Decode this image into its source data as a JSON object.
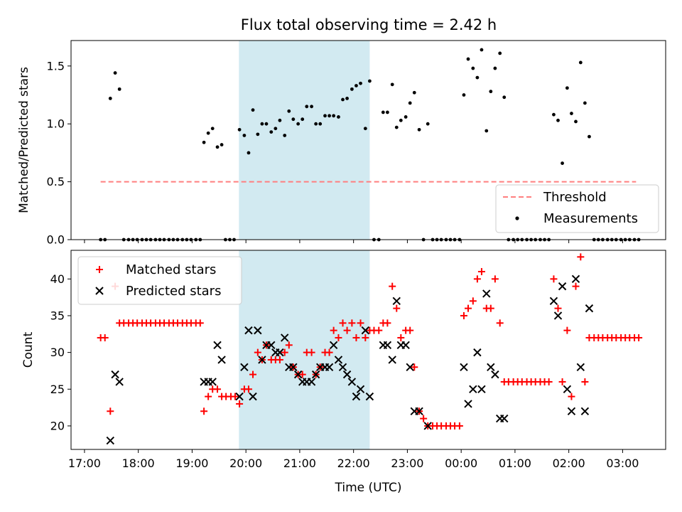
{
  "chart_data": {
    "type": "scatter",
    "title": "Flux total observing time = 2.42 h",
    "xlabel": "Time (UTC)",
    "x_ticks": [
      "17:00",
      "18:00",
      "19:00",
      "20:00",
      "21:00",
      "22:00",
      "23:00",
      "00:00",
      "01:00",
      "02:00",
      "03:00"
    ],
    "x_tick_hours": [
      17,
      18,
      19,
      20,
      21,
      22,
      23,
      24,
      25,
      26,
      27
    ],
    "xlim_hours": [
      16.75,
      27.8
    ],
    "highlight_span_hours": [
      19.87,
      22.3
    ],
    "colors": {
      "measurements": "#000000",
      "threshold": "#ff7f7f",
      "matched": "#ff0000",
      "predicted": "#000000",
      "span": "#add8e6"
    },
    "top": {
      "ylabel": "Matched/Predicted stars",
      "ylim": [
        0,
        1.72
      ],
      "y_ticks": [
        0.0,
        0.5,
        1.0,
        1.5
      ],
      "legend": [
        "Threshold",
        "Measurements"
      ],
      "legend_location": "lower-right",
      "threshold": {
        "name": "Threshold",
        "value": 0.5,
        "x_range_hours": [
          17.3,
          27.25
        ]
      },
      "measurements": [
        [
          17.3,
          0
        ],
        [
          17.38,
          0
        ],
        [
          17.48,
          1.22
        ],
        [
          17.57,
          1.44
        ],
        [
          17.65,
          1.3
        ],
        [
          17.73,
          0
        ],
        [
          17.82,
          0
        ],
        [
          17.9,
          0
        ],
        [
          17.98,
          0
        ],
        [
          18.07,
          0
        ],
        [
          18.15,
          0
        ],
        [
          18.23,
          0
        ],
        [
          18.32,
          0
        ],
        [
          18.4,
          0
        ],
        [
          18.48,
          0
        ],
        [
          18.57,
          0
        ],
        [
          18.65,
          0
        ],
        [
          18.73,
          0
        ],
        [
          18.82,
          0
        ],
        [
          18.9,
          0
        ],
        [
          18.98,
          0
        ],
        [
          19.07,
          0
        ],
        [
          19.15,
          0
        ],
        [
          19.22,
          0.84
        ],
        [
          19.3,
          0.92
        ],
        [
          19.38,
          0.96
        ],
        [
          19.47,
          0.8
        ],
        [
          19.55,
          0.82
        ],
        [
          19.62,
          0
        ],
        [
          19.7,
          0
        ],
        [
          19.78,
          0
        ],
        [
          19.88,
          0.95
        ],
        [
          19.97,
          0.9
        ],
        [
          20.05,
          0.75
        ],
        [
          20.13,
          1.12
        ],
        [
          20.22,
          0.91
        ],
        [
          20.3,
          1.0
        ],
        [
          20.38,
          1.0
        ],
        [
          20.47,
          0.93
        ],
        [
          20.55,
          0.96
        ],
        [
          20.63,
          1.03
        ],
        [
          20.72,
          0.9
        ],
        [
          20.8,
          1.11
        ],
        [
          20.88,
          1.04
        ],
        [
          20.97,
          1.0
        ],
        [
          21.05,
          1.04
        ],
        [
          21.13,
          1.15
        ],
        [
          21.22,
          1.15
        ],
        [
          21.3,
          1.0
        ],
        [
          21.38,
          1.0
        ],
        [
          21.47,
          1.07
        ],
        [
          21.55,
          1.07
        ],
        [
          21.63,
          1.07
        ],
        [
          21.72,
          1.06
        ],
        [
          21.8,
          1.21
        ],
        [
          21.88,
          1.22
        ],
        [
          21.97,
          1.3
        ],
        [
          22.05,
          1.33
        ],
        [
          22.13,
          1.35
        ],
        [
          22.22,
          0.96
        ],
        [
          22.3,
          1.37
        ],
        [
          22.38,
          0
        ],
        [
          22.47,
          0
        ],
        [
          22.55,
          1.1
        ],
        [
          22.63,
          1.1
        ],
        [
          22.72,
          1.34
        ],
        [
          22.8,
          0.97
        ],
        [
          22.88,
          1.03
        ],
        [
          22.97,
          1.06
        ],
        [
          23.05,
          1.18
        ],
        [
          23.13,
          1.27
        ],
        [
          23.22,
          0.95
        ],
        [
          23.3,
          0
        ],
        [
          23.38,
          1.0
        ],
        [
          23.47,
          0
        ],
        [
          23.55,
          0
        ],
        [
          23.63,
          0
        ],
        [
          23.72,
          0
        ],
        [
          23.8,
          0
        ],
        [
          23.88,
          0
        ],
        [
          23.97,
          0
        ],
        [
          24.05,
          1.25
        ],
        [
          24.13,
          1.56
        ],
        [
          24.22,
          1.48
        ],
        [
          24.3,
          1.4
        ],
        [
          24.38,
          1.64
        ],
        [
          24.47,
          0.94
        ],
        [
          24.55,
          1.28
        ],
        [
          24.63,
          1.48
        ],
        [
          24.72,
          1.61
        ],
        [
          24.8,
          1.23
        ],
        [
          24.88,
          0
        ],
        [
          24.97,
          0
        ],
        [
          25.05,
          0
        ],
        [
          25.13,
          0
        ],
        [
          25.22,
          0
        ],
        [
          25.3,
          0
        ],
        [
          25.38,
          0
        ],
        [
          25.47,
          0
        ],
        [
          25.55,
          0
        ],
        [
          25.63,
          0
        ],
        [
          25.72,
          1.08
        ],
        [
          25.8,
          1.03
        ],
        [
          25.88,
          0.66
        ],
        [
          25.97,
          1.31
        ],
        [
          26.05,
          1.09
        ],
        [
          26.13,
          1.02
        ],
        [
          26.22,
          1.53
        ],
        [
          26.3,
          1.18
        ],
        [
          26.38,
          0.89
        ],
        [
          26.47,
          0
        ],
        [
          26.55,
          0
        ],
        [
          26.63,
          0
        ],
        [
          26.72,
          0
        ],
        [
          26.8,
          0
        ],
        [
          26.88,
          0
        ],
        [
          26.97,
          0
        ],
        [
          27.05,
          0
        ],
        [
          27.13,
          0
        ],
        [
          27.22,
          0
        ],
        [
          27.3,
          0
        ]
      ]
    },
    "bottom": {
      "ylabel": "Count",
      "ylim": [
        16.8,
        43.9
      ],
      "y_ticks": [
        20,
        25,
        30,
        35,
        40
      ],
      "legend": [
        "Matched stars",
        "Predicted stars"
      ],
      "legend_location": "upper-left",
      "matched": [
        [
          17.3,
          32
        ],
        [
          17.38,
          32
        ],
        [
          17.48,
          22
        ],
        [
          17.57,
          39
        ],
        [
          17.65,
          34
        ],
        [
          17.73,
          34
        ],
        [
          17.82,
          34
        ],
        [
          17.9,
          34
        ],
        [
          17.98,
          34
        ],
        [
          18.07,
          34
        ],
        [
          18.15,
          34
        ],
        [
          18.23,
          34
        ],
        [
          18.32,
          34
        ],
        [
          18.4,
          34
        ],
        [
          18.48,
          34
        ],
        [
          18.57,
          34
        ],
        [
          18.65,
          34
        ],
        [
          18.73,
          34
        ],
        [
          18.82,
          34
        ],
        [
          18.9,
          34
        ],
        [
          18.98,
          34
        ],
        [
          19.07,
          34
        ],
        [
          19.15,
          34
        ],
        [
          19.22,
          22
        ],
        [
          19.3,
          24
        ],
        [
          19.38,
          25
        ],
        [
          19.47,
          25
        ],
        [
          19.55,
          24
        ],
        [
          19.63,
          24
        ],
        [
          19.72,
          24
        ],
        [
          19.8,
          24
        ],
        [
          19.88,
          23
        ],
        [
          19.97,
          25
        ],
        [
          20.05,
          25
        ],
        [
          20.13,
          27
        ],
        [
          20.22,
          30
        ],
        [
          20.3,
          29
        ],
        [
          20.38,
          31
        ],
        [
          20.47,
          29
        ],
        [
          20.55,
          29
        ],
        [
          20.63,
          29
        ],
        [
          20.72,
          30
        ],
        [
          20.8,
          31
        ],
        [
          20.88,
          28
        ],
        [
          20.97,
          27
        ],
        [
          21.05,
          27
        ],
        [
          21.13,
          30
        ],
        [
          21.22,
          30
        ],
        [
          21.3,
          27
        ],
        [
          21.38,
          28
        ],
        [
          21.47,
          30
        ],
        [
          21.55,
          30
        ],
        [
          21.63,
          33
        ],
        [
          21.72,
          32
        ],
        [
          21.8,
          34
        ],
        [
          21.88,
          33
        ],
        [
          21.97,
          34
        ],
        [
          22.05,
          32
        ],
        [
          22.13,
          34
        ],
        [
          22.22,
          32
        ],
        [
          22.3,
          33
        ],
        [
          22.38,
          33
        ],
        [
          22.47,
          33
        ],
        [
          22.55,
          34
        ],
        [
          22.63,
          34
        ],
        [
          22.72,
          39
        ],
        [
          22.8,
          36
        ],
        [
          22.88,
          32
        ],
        [
          22.97,
          33
        ],
        [
          23.05,
          33
        ],
        [
          23.13,
          28
        ],
        [
          23.22,
          22
        ],
        [
          23.3,
          21
        ],
        [
          23.38,
          20
        ],
        [
          23.47,
          20
        ],
        [
          23.55,
          20
        ],
        [
          23.63,
          20
        ],
        [
          23.72,
          20
        ],
        [
          23.8,
          20
        ],
        [
          23.88,
          20
        ],
        [
          23.97,
          20
        ],
        [
          24.05,
          35
        ],
        [
          24.13,
          36
        ],
        [
          24.22,
          37
        ],
        [
          24.3,
          40
        ],
        [
          24.38,
          41
        ],
        [
          24.47,
          36
        ],
        [
          24.55,
          36
        ],
        [
          24.63,
          40
        ],
        [
          24.72,
          34
        ],
        [
          24.8,
          26
        ],
        [
          24.88,
          26
        ],
        [
          24.97,
          26
        ],
        [
          25.05,
          26
        ],
        [
          25.13,
          26
        ],
        [
          25.22,
          26
        ],
        [
          25.3,
          26
        ],
        [
          25.38,
          26
        ],
        [
          25.47,
          26
        ],
        [
          25.55,
          26
        ],
        [
          25.63,
          26
        ],
        [
          25.72,
          40
        ],
        [
          25.8,
          36
        ],
        [
          25.88,
          26
        ],
        [
          25.97,
          33
        ],
        [
          26.05,
          24
        ],
        [
          26.13,
          39
        ],
        [
          26.22,
          43
        ],
        [
          26.3,
          26
        ],
        [
          26.38,
          32
        ],
        [
          26.47,
          32
        ],
        [
          26.55,
          32
        ],
        [
          26.63,
          32
        ],
        [
          26.72,
          32
        ],
        [
          26.8,
          32
        ],
        [
          26.88,
          32
        ],
        [
          26.97,
          32
        ],
        [
          27.05,
          32
        ],
        [
          27.13,
          32
        ],
        [
          27.22,
          32
        ],
        [
          27.3,
          32
        ]
      ],
      "predicted": [
        [
          17.48,
          18
        ],
        [
          17.57,
          27
        ],
        [
          17.65,
          26
        ],
        [
          19.22,
          26
        ],
        [
          19.3,
          26
        ],
        [
          19.38,
          26
        ],
        [
          19.47,
          31
        ],
        [
          19.55,
          29
        ],
        [
          19.88,
          24
        ],
        [
          19.97,
          28
        ],
        [
          20.05,
          33
        ],
        [
          20.13,
          24
        ],
        [
          20.22,
          33
        ],
        [
          20.3,
          29
        ],
        [
          20.38,
          31
        ],
        [
          20.47,
          31
        ],
        [
          20.55,
          30
        ],
        [
          20.63,
          30
        ],
        [
          20.72,
          32
        ],
        [
          20.8,
          28
        ],
        [
          20.88,
          28
        ],
        [
          20.97,
          27
        ],
        [
          21.05,
          26
        ],
        [
          21.13,
          26
        ],
        [
          21.22,
          26
        ],
        [
          21.3,
          27
        ],
        [
          21.38,
          28
        ],
        [
          21.47,
          28
        ],
        [
          21.55,
          28
        ],
        [
          21.63,
          31
        ],
        [
          21.72,
          29
        ],
        [
          21.8,
          28
        ],
        [
          21.88,
          27
        ],
        [
          21.97,
          26
        ],
        [
          22.05,
          24
        ],
        [
          22.13,
          25
        ],
        [
          22.22,
          33
        ],
        [
          22.3,
          24
        ],
        [
          22.55,
          31
        ],
        [
          22.63,
          31
        ],
        [
          22.72,
          29
        ],
        [
          22.8,
          37
        ],
        [
          22.88,
          31
        ],
        [
          22.97,
          31
        ],
        [
          23.05,
          28
        ],
        [
          23.13,
          22
        ],
        [
          23.22,
          22
        ],
        [
          23.38,
          20
        ],
        [
          24.05,
          28
        ],
        [
          24.13,
          23
        ],
        [
          24.22,
          25
        ],
        [
          24.3,
          30
        ],
        [
          24.38,
          25
        ],
        [
          24.47,
          38
        ],
        [
          24.55,
          28
        ],
        [
          24.63,
          27
        ],
        [
          24.72,
          21
        ],
        [
          24.8,
          21
        ],
        [
          25.72,
          37
        ],
        [
          25.8,
          35
        ],
        [
          25.88,
          39
        ],
        [
          25.97,
          25
        ],
        [
          26.05,
          22
        ],
        [
          26.13,
          40
        ],
        [
          26.22,
          28
        ],
        [
          26.3,
          22
        ],
        [
          26.38,
          36
        ]
      ]
    }
  }
}
